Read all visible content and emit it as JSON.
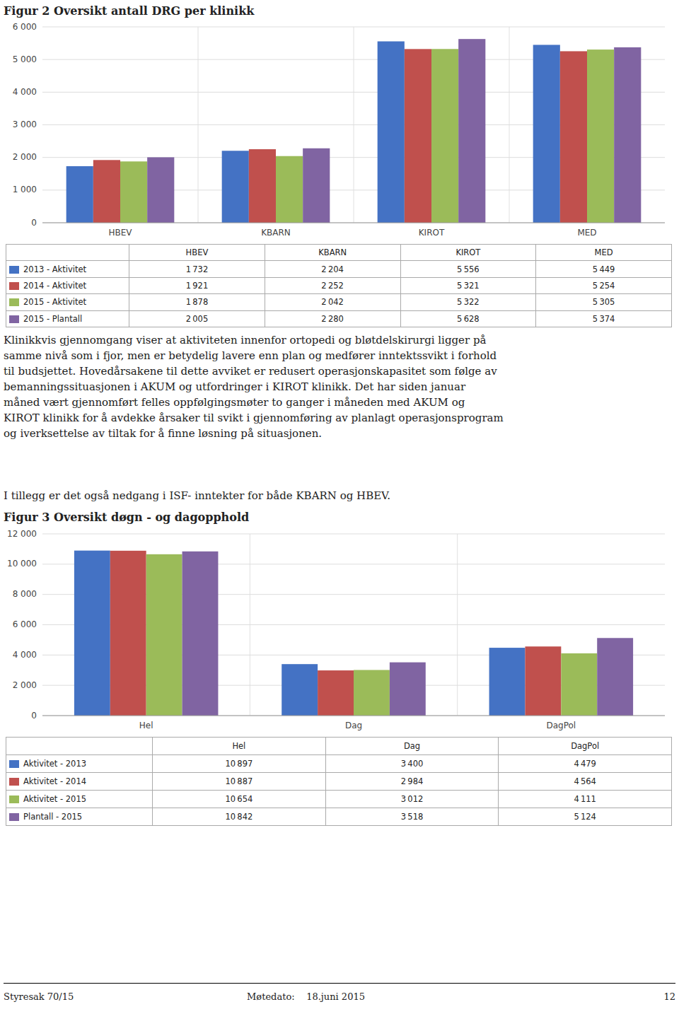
{
  "chart_data": [
    {
      "type": "bar",
      "title": "Figur 2 Oversikt antall DRG per klinikk",
      "categories": [
        "HBEV",
        "KBARN",
        "KIROT",
        "MED"
      ],
      "series": [
        {
          "name": "2013 - Aktivitet",
          "color": "#4472C4",
          "values": [
            1732,
            2204,
            5556,
            5449
          ],
          "value_labels": [
            "1 732",
            "2 204",
            "5 556",
            "5 449"
          ]
        },
        {
          "name": "2014 - Aktivitet",
          "color": "#C0504D",
          "values": [
            1921,
            2252,
            5321,
            5254
          ],
          "value_labels": [
            "1 921",
            "2 252",
            "5 321",
            "5 254"
          ]
        },
        {
          "name": "2015 - Aktivitet",
          "color": "#9BBB59",
          "values": [
            1878,
            2042,
            5322,
            5305
          ],
          "value_labels": [
            "1 878",
            "2 042",
            "5 322",
            "5 305"
          ]
        },
        {
          "name": "2015 - Plantall",
          "color": "#8064A2",
          "values": [
            2005,
            2280,
            5628,
            5374
          ],
          "value_labels": [
            "2 005",
            "2 280",
            "5 628",
            "5 374"
          ]
        }
      ],
      "ylim": [
        0,
        6000
      ],
      "yticks": [
        0,
        {
          "value": 1000,
          "label": "1 000"
        },
        {
          "value": 2000,
          "label": "2 000"
        },
        {
          "value": 3000,
          "label": "3 000"
        },
        {
          "value": 4000,
          "label": "4 000"
        },
        {
          "value": 5000,
          "label": "5 000"
        },
        {
          "value": 6000,
          "label": "6 000"
        }
      ],
      "grid": true
    },
    {
      "type": "bar",
      "title": "Figur 3 Oversikt døgn - og dagopphold",
      "categories": [
        "Hel",
        "Dag",
        "DagPol"
      ],
      "series": [
        {
          "name": "Aktivitet - 2013",
          "color": "#4472C4",
          "values": [
            10897,
            3400,
            4479
          ],
          "value_labels": [
            "10 897",
            "3 400",
            "4 479"
          ]
        },
        {
          "name": "Aktivitet - 2014",
          "color": "#C0504D",
          "values": [
            10887,
            2984,
            4564
          ],
          "value_labels": [
            "10 887",
            "2 984",
            "4 564"
          ]
        },
        {
          "name": "Aktivitet - 2015",
          "color": "#9BBB59",
          "values": [
            10654,
            3012,
            4111
          ],
          "value_labels": [
            "10 654",
            "3 012",
            "4 111"
          ]
        },
        {
          "name": "Plantall - 2015",
          "color": "#8064A2",
          "values": [
            10842,
            3518,
            5124
          ],
          "value_labels": [
            "10 842",
            "3 518",
            "5 124"
          ]
        }
      ],
      "ylim": [
        0,
        12000
      ],
      "yticks": [
        0,
        {
          "value": 2000,
          "label": "2 000"
        },
        {
          "value": 4000,
          "label": "4 000"
        },
        {
          "value": 6000,
          "label": "6 000"
        },
        {
          "value": 8000,
          "label": "8 000"
        },
        {
          "value": 10000,
          "label": "10 000"
        },
        {
          "value": 12000,
          "label": "12 000"
        }
      ],
      "grid": true
    }
  ],
  "body_text": "Klinikkvis gjennomgang viser at aktiviteten innenfor ortopedi og bløtdelskirurgi ligger på\nsamme nivå som i fjor, men er betydelig lavere enn plan og medfører inntektssvikt i forhold\ntil budsjettet. Hovedårsakene til dette avviket er redusert operasjonskapasitet som følge av\nbemanningssituasjonen i AKUM og utfordringer i KIROT klinikk. Det har siden januar\nmåned vært gjennomført felles oppfølgingsmøter to ganger i måneden med AKUM og\nKIROT klinikk for å avdekke årsaker til svikt i gjennomføring av planlagt operasjonsprogram\nog iverksettelse av tiltak for å finne løsning på situasjonen.",
  "extra_text": "I tillegg er det også nedgang i ISF- inntekter for både KBARN og HBEV.",
  "footer": {
    "left": "Styresak 70/15",
    "center": "Møtedato:    18.juni 2015",
    "right": "12"
  }
}
